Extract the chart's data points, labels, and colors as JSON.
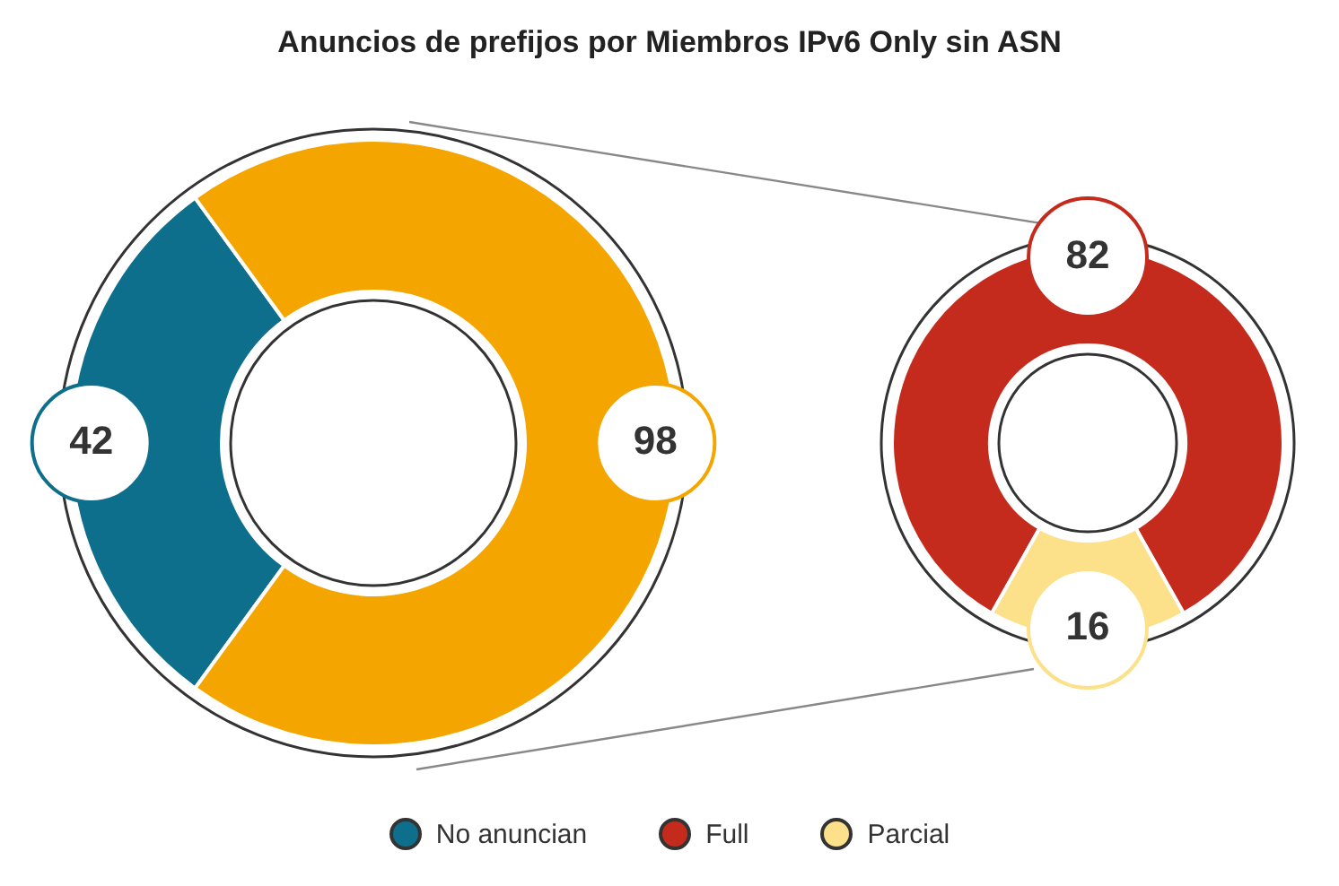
{
  "chart_data": [
    {
      "type": "donut",
      "title": "Anuncios de prefijos por Miembros IPv6 Only sin ASN",
      "categories": [
        "No anuncian",
        null
      ],
      "values": [
        42,
        98
      ],
      "colors": [
        "#0e6f8c",
        "#f5a500"
      ],
      "data_labels": true,
      "legend": "bottom"
    },
    {
      "type": "donut",
      "categories": [
        "Full",
        "Parcial"
      ],
      "values": [
        82,
        16
      ],
      "colors": [
        "#c42b1c",
        "#fde08a"
      ],
      "data_labels": true,
      "legend": "bottom"
    }
  ]
}
